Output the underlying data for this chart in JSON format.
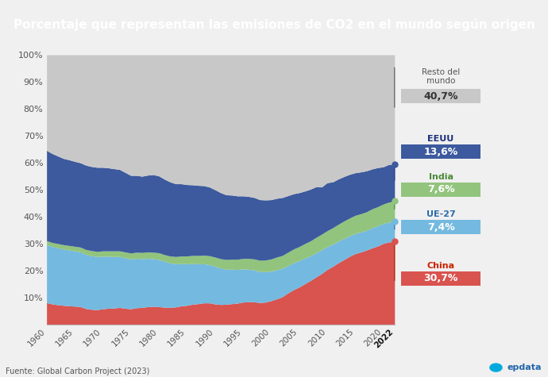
{
  "title": "Porcentaje que representan las emisiones de CO2 en el mundo según origen",
  "title_bg": "#111111",
  "title_color": "#ffffff",
  "source": "Fuente: Global Carbon Project (2023)",
  "years": [
    1960,
    1961,
    1962,
    1963,
    1964,
    1965,
    1966,
    1967,
    1968,
    1969,
    1970,
    1971,
    1972,
    1973,
    1974,
    1975,
    1976,
    1977,
    1978,
    1979,
    1980,
    1981,
    1982,
    1983,
    1984,
    1985,
    1986,
    1987,
    1988,
    1989,
    1990,
    1991,
    1992,
    1993,
    1994,
    1995,
    1996,
    1997,
    1998,
    1999,
    2000,
    2001,
    2002,
    2003,
    2004,
    2005,
    2006,
    2007,
    2008,
    2009,
    2010,
    2011,
    2012,
    2013,
    2014,
    2015,
    2016,
    2017,
    2018,
    2019,
    2020,
    2021,
    2022
  ],
  "china": [
    8.0,
    7.5,
    7.2,
    7.0,
    6.8,
    6.7,
    6.5,
    5.8,
    5.5,
    5.4,
    5.7,
    5.9,
    6.0,
    6.2,
    5.9,
    5.7,
    6.1,
    6.2,
    6.5,
    6.6,
    6.5,
    6.3,
    6.2,
    6.4,
    6.8,
    7.0,
    7.4,
    7.6,
    7.9,
    7.9,
    7.5,
    7.3,
    7.4,
    7.6,
    7.8,
    8.2,
    8.3,
    8.3,
    8.0,
    8.2,
    8.7,
    9.4,
    10.2,
    11.6,
    12.8,
    13.8,
    15.0,
    16.2,
    17.5,
    18.8,
    20.3,
    21.5,
    22.8,
    24.0,
    25.2,
    26.2,
    26.8,
    27.5,
    28.3,
    29.0,
    30.0,
    30.5,
    30.7
  ],
  "ue27": [
    21.5,
    21.3,
    21.1,
    20.9,
    20.7,
    20.5,
    20.3,
    20.1,
    19.9,
    19.7,
    19.5,
    19.3,
    19.1,
    18.9,
    18.7,
    18.5,
    18.3,
    18.1,
    17.9,
    17.7,
    17.5,
    17.0,
    16.5,
    16.0,
    15.7,
    15.4,
    15.1,
    14.8,
    14.5,
    14.2,
    14.0,
    13.5,
    13.0,
    12.8,
    12.5,
    12.3,
    12.1,
    11.8,
    11.5,
    11.3,
    11.0,
    10.8,
    10.5,
    10.2,
    10.0,
    9.8,
    9.5,
    9.2,
    9.0,
    8.8,
    8.5,
    8.2,
    8.0,
    7.8,
    7.6,
    7.5,
    7.4,
    7.3,
    7.5,
    7.5,
    7.4,
    7.4,
    7.4
  ],
  "india": [
    1.5,
    1.5,
    1.6,
    1.6,
    1.7,
    1.7,
    1.8,
    1.8,
    1.9,
    1.9,
    2.0,
    2.0,
    2.1,
    2.1,
    2.2,
    2.2,
    2.3,
    2.3,
    2.4,
    2.4,
    2.5,
    2.5,
    2.6,
    2.7,
    2.8,
    2.9,
    3.0,
    3.1,
    3.2,
    3.3,
    3.4,
    3.5,
    3.6,
    3.7,
    3.8,
    3.9,
    4.0,
    4.1,
    4.2,
    4.3,
    4.5,
    4.7,
    4.8,
    4.9,
    5.1,
    5.2,
    5.4,
    5.5,
    5.7,
    5.8,
    5.9,
    6.1,
    6.3,
    6.5,
    6.6,
    6.7,
    6.8,
    6.9,
    7.0,
    7.1,
    7.2,
    7.4,
    7.6
  ],
  "eeuu": [
    33.5,
    33.0,
    32.5,
    32.0,
    31.8,
    31.5,
    31.3,
    31.3,
    31.2,
    31.2,
    31.0,
    30.8,
    30.5,
    30.2,
    29.5,
    28.8,
    28.5,
    28.3,
    28.5,
    28.8,
    28.5,
    28.0,
    27.5,
    27.0,
    26.8,
    26.5,
    26.2,
    26.0,
    25.8,
    25.5,
    25.0,
    24.5,
    24.0,
    23.8,
    23.5,
    23.2,
    23.0,
    22.8,
    22.5,
    22.3,
    22.0,
    21.8,
    21.5,
    21.0,
    20.5,
    20.0,
    19.5,
    19.2,
    18.8,
    17.5,
    17.8,
    17.0,
    16.8,
    16.5,
    16.2,
    15.8,
    15.5,
    15.2,
    14.8,
    14.5,
    13.8,
    14.0,
    13.6
  ],
  "colors": {
    "china": "#d9534f",
    "ue27": "#74b9e0",
    "india": "#92c47d",
    "eeuu": "#3d5a9e",
    "resto": "#c8c8c8"
  },
  "bg_color": "#f0f0f0",
  "plot_bg": "#f0f0f0",
  "title_fontsize": 11,
  "ylabel_fontsize": 8,
  "xlabel_fontsize": 7.5
}
